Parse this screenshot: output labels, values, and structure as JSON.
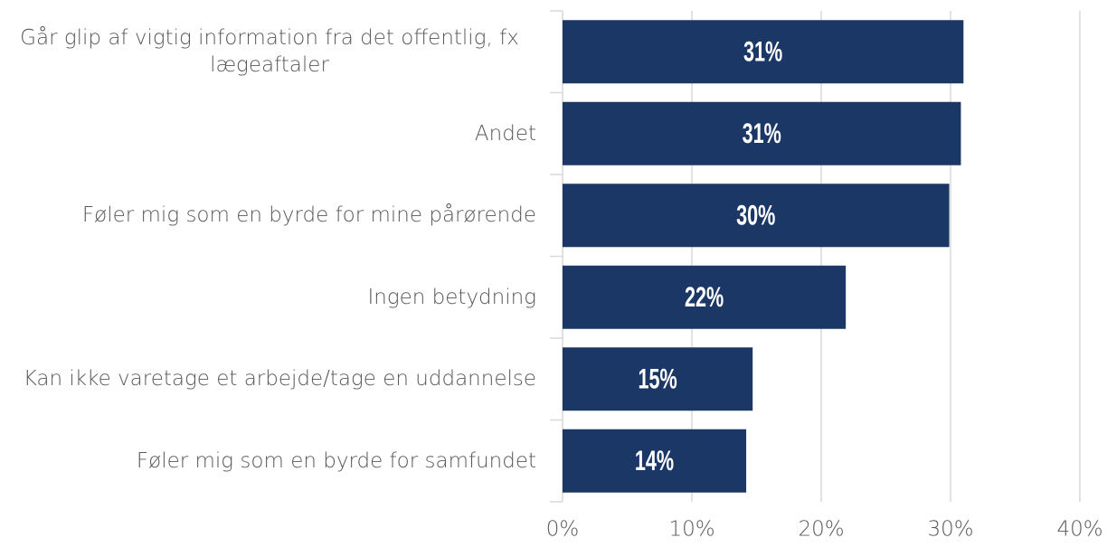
{
  "chart_data": {
    "type": "hbar",
    "categories": [
      "Går glip af vigtig information fra det offentlig, fx lægeaftaler",
      "Andet",
      "Føler mig som en byrde for mine pårørende",
      "Ingen betydning",
      "Kan ikke varetage et arbejde/tage en uddannelse",
      "Føler mig som en byrde for samfundet"
    ],
    "values": [
      31.0,
      30.8,
      29.9,
      21.9,
      14.7,
      14.2
    ],
    "value_labels": [
      "31%",
      "31%",
      "30%",
      "22%",
      "15%",
      "14%"
    ],
    "color": "#1b3766",
    "xlim": [
      0,
      40
    ],
    "xticks": [
      {
        "value": 0,
        "label": "0%"
      },
      {
        "value": 10,
        "label": "10%"
      },
      {
        "value": 20,
        "label": "20%"
      },
      {
        "value": 30,
        "label": "30%"
      },
      {
        "value": 40,
        "label": "40%"
      }
    ],
    "grid": true
  }
}
